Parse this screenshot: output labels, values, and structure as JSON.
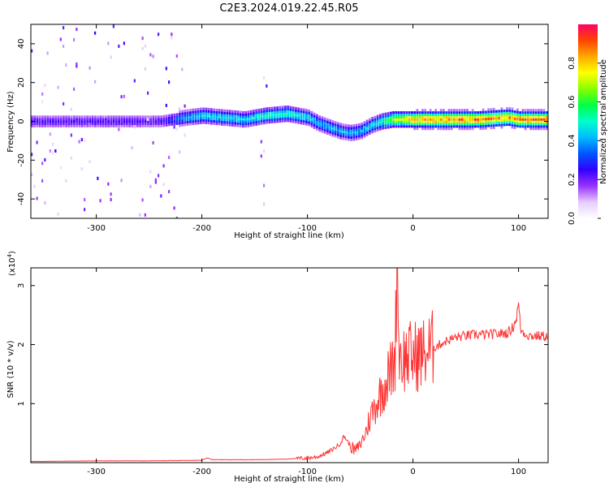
{
  "title": "C2E3.2024.019.22.45.R05",
  "chart_data": [
    {
      "type": "heatmap",
      "xlabel": "Height of straight line (km)",
      "ylabel": "Frequency (Hz)",
      "xlim": [
        -362,
        128
      ],
      "ylim": [
        -50,
        50
      ],
      "xticks": [
        -300,
        -200,
        -100,
        0,
        100
      ],
      "yticks": [
        -40,
        -20,
        0,
        20,
        40
      ],
      "colorbar": {
        "label": "Normalized spectral amplitude",
        "range": [
          0,
          1
        ],
        "ticks": [
          "0.0",
          "0.2",
          "0.4",
          "0.6",
          "0.8"
        ],
        "colors": [
          "#ffffff",
          "#e6ccff",
          "#9933ff",
          "#3300ff",
          "#0055ff",
          "#00bbff",
          "#00ffcc",
          "#00ff44",
          "#88ff00",
          "#ffff00",
          "#ffaa00",
          "#ff4400",
          "#ff0066"
        ]
      },
      "ridge": {
        "x": [
          -360,
          -330,
          -300,
          -270,
          -240,
          -215,
          -200,
          -180,
          -160,
          -140,
          -120,
          -100,
          -90,
          -80,
          -70,
          -60,
          -50,
          -40,
          -30,
          -20,
          -10,
          0,
          20,
          60,
          90,
          100,
          128
        ],
        "y": [
          0,
          0,
          0,
          0,
          0,
          2,
          3,
          2,
          1,
          3,
          4,
          2,
          -1,
          -3,
          -5,
          -6,
          -5,
          -2,
          0,
          1,
          1,
          1,
          1,
          1,
          2,
          1,
          1
        ],
        "amplitude": [
          0.25,
          0.25,
          0.25,
          0.25,
          0.25,
          0.45,
          0.5,
          0.5,
          0.5,
          0.55,
          0.55,
          0.5,
          0.45,
          0.45,
          0.45,
          0.45,
          0.45,
          0.5,
          0.55,
          0.75,
          0.8,
          0.9,
          0.95,
          0.95,
          0.9,
          0.95,
          0.95
        ]
      }
    },
    {
      "type": "line",
      "xlabel": "Height of straight line (km)",
      "ylabel": "SNR (10 * v/v)",
      "yunit": "(x10",
      "yunit_exp": "4",
      "yunit_close": ")",
      "xlim": [
        -362,
        128
      ],
      "ylim": [
        0,
        3.3
      ],
      "xticks": [
        -300,
        -200,
        -100,
        0,
        100
      ],
      "yticks": [
        1,
        2,
        3
      ],
      "color": "#ff3333",
      "series": [
        {
          "x": [
            -362,
            -300,
            -250,
            -200,
            -195,
            -190,
            -150,
            -120,
            -100,
            -90,
            -80,
            -70,
            -65,
            -60,
            -55,
            -50,
            -45,
            -40,
            -35,
            -30,
            -25,
            -20,
            -17,
            -15,
            -13,
            -10,
            -5,
            0,
            10,
            20,
            30,
            40,
            50,
            60,
            70,
            80,
            90,
            95,
            98,
            100,
            102,
            105,
            110,
            128
          ],
          "y": [
            0.02,
            0.03,
            0.03,
            0.04,
            0.08,
            0.05,
            0.05,
            0.06,
            0.08,
            0.1,
            0.18,
            0.3,
            0.45,
            0.3,
            0.2,
            0.3,
            0.5,
            0.8,
            1.0,
            1.2,
            1.4,
            1.6,
            1.8,
            3.3,
            1.9,
            1.75,
            1.8,
            1.8,
            1.85,
            1.95,
            2.05,
            2.12,
            2.15,
            2.17,
            2.17,
            2.18,
            2.2,
            2.3,
            2.45,
            2.7,
            2.25,
            2.2,
            2.15,
            2.14
          ]
        }
      ]
    }
  ]
}
